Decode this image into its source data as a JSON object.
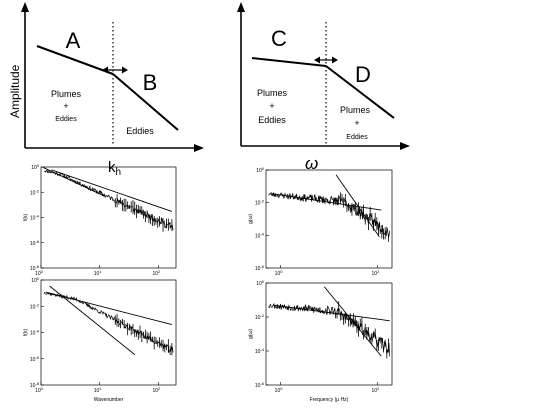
{
  "schematics": [
    {
      "ylabel": "Amplitude",
      "xlabel": "k",
      "xlabel_sub": "h",
      "region_left": {
        "letter": "A",
        "lines": [
          "Plumes",
          "+",
          "Eddies"
        ]
      },
      "region_right": {
        "letter": "B",
        "lines": [
          "Eddies"
        ]
      }
    },
    {
      "ylabel": "",
      "xlabel": "ω",
      "xlabel_sub": "",
      "region_left": {
        "letter": "C",
        "lines": [
          "Plumes",
          "+",
          "Eddies"
        ]
      },
      "region_right": {
        "letter": "D",
        "lines": [
          "Plumes",
          "+",
          "Eddies"
        ]
      }
    }
  ],
  "chart_data": [
    {
      "type": "line",
      "scale": "log-log",
      "ylabel": "f(k)",
      "xlabel": "",
      "xlim": [
        1,
        200
      ],
      "ylim": [
        1e-08,
        1
      ],
      "xticks": [
        1,
        10,
        100
      ],
      "yticks": [
        1e-08,
        1e-06,
        0.0001,
        0.01,
        1
      ],
      "spectrum": {
        "k0": 2.2,
        "slope_low": -1.1,
        "slope_high": -2.2,
        "seed": 11,
        "noise": 0.35
      },
      "fits": [
        {
          "x": [
            1.5,
            170
          ],
          "y": [
            0.6,
            0.0003
          ]
        },
        {
          "x": [
            1.1,
            12
          ],
          "y": [
            0.9,
            0.005
          ]
        }
      ]
    },
    {
      "type": "line",
      "scale": "log-log",
      "ylabel": "g(ω)",
      "xlabel": "",
      "xlim": [
        0.5,
        200
      ],
      "ylim": [
        1e-06,
        1
      ],
      "xticks": [
        1,
        100
      ],
      "yticks": [
        1e-06,
        0.0001,
        0.01,
        1
      ],
      "spectrum": {
        "k0": 20,
        "slope_low": -0.3,
        "slope_high": -2.0,
        "seed": 23,
        "noise": 0.5
      },
      "fits": [
        {
          "x": [
            0.7,
            120
          ],
          "y": [
            0.035,
            0.0035
          ]
        },
        {
          "x": [
            14,
            110
          ],
          "y": [
            0.5,
            8e-05
          ]
        }
      ]
    },
    {
      "type": "line",
      "scale": "log-log",
      "ylabel": "f(k)",
      "xlabel": "Wavenumber",
      "xlim": [
        1,
        200
      ],
      "ylim": [
        1e-08,
        1
      ],
      "xticks": [
        1,
        10,
        100
      ],
      "yticks": [
        1e-08,
        1e-06,
        0.0001,
        0.01,
        1
      ],
      "spectrum": {
        "k0": 4,
        "slope_low": -0.9,
        "slope_high": -2.4,
        "seed": 37,
        "noise": 0.3
      },
      "fits": [
        {
          "x": [
            1.2,
            170
          ],
          "y": [
            0.12,
            0.0004
          ]
        },
        {
          "x": [
            1.4,
            40
          ],
          "y": [
            0.35,
            2e-06
          ]
        }
      ]
    },
    {
      "type": "line",
      "scale": "log-log",
      "ylabel": "g(ω)",
      "xlabel": "Frequency (μ Hz)",
      "xlim": [
        0.5,
        200
      ],
      "ylim": [
        1e-06,
        1
      ],
      "xticks": [
        1,
        100
      ],
      "yticks": [
        1e-06,
        0.0001,
        0.01,
        1
      ],
      "spectrum": {
        "k0": 15,
        "slope_low": -0.25,
        "slope_high": -2.1,
        "seed": 53,
        "noise": 0.5
      },
      "fits": [
        {
          "x": [
            0.7,
            180
          ],
          "y": [
            0.05,
            0.006
          ]
        },
        {
          "x": [
            8,
            120
          ],
          "y": [
            0.6,
            5e-05
          ]
        }
      ]
    }
  ]
}
